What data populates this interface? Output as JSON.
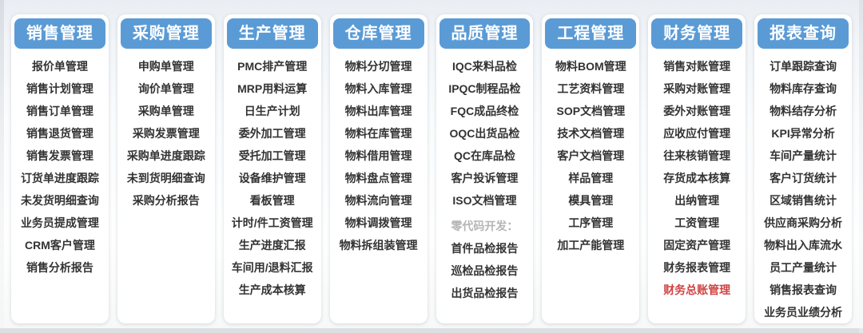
{
  "colors": {
    "header_bg": "#5b9bd5",
    "header_text": "#ffffff",
    "card_bg": "#ffffff",
    "item_text": "#333333",
    "muted_text": "#b5b5b5",
    "highlight_text": "#d04343"
  },
  "columns": [
    {
      "title": "销售管理",
      "items": [
        {
          "label": "报价单管理",
          "style": "normal"
        },
        {
          "label": "销售计划管理",
          "style": "normal"
        },
        {
          "label": "销售订单管理",
          "style": "normal"
        },
        {
          "label": "销售退货管理",
          "style": "normal"
        },
        {
          "label": "销售发票管理",
          "style": "normal"
        },
        {
          "label": "订货单进度跟踪",
          "style": "normal"
        },
        {
          "label": "未发货明细查询",
          "style": "normal"
        },
        {
          "label": "业务员提成管理",
          "style": "normal"
        },
        {
          "label": "CRM客户管理",
          "style": "normal"
        },
        {
          "label": "销售分析报告",
          "style": "normal"
        }
      ]
    },
    {
      "title": "采购管理",
      "items": [
        {
          "label": "申购单管理",
          "style": "normal"
        },
        {
          "label": "询价单管理",
          "style": "normal"
        },
        {
          "label": "采购单管理",
          "style": "normal"
        },
        {
          "label": "采购发票管理",
          "style": "normal"
        },
        {
          "label": "采购单进度跟踪",
          "style": "normal"
        },
        {
          "label": "未到货明细查询",
          "style": "normal"
        },
        {
          "label": "采购分析报告",
          "style": "normal"
        }
      ]
    },
    {
      "title": "生产管理",
      "items": [
        {
          "label": "PMC排产管理",
          "style": "normal"
        },
        {
          "label": "MRP用料运算",
          "style": "normal"
        },
        {
          "label": "日生产计划",
          "style": "normal"
        },
        {
          "label": "委外加工管理",
          "style": "normal"
        },
        {
          "label": "受托加工管理",
          "style": "normal"
        },
        {
          "label": "设备维护管理",
          "style": "normal"
        },
        {
          "label": "看板管理",
          "style": "normal"
        },
        {
          "label": "计时/件工资管理",
          "style": "normal"
        },
        {
          "label": "生产进度汇报",
          "style": "normal"
        },
        {
          "label": "车间用/退料汇报",
          "style": "normal"
        },
        {
          "label": "生产成本核算",
          "style": "normal"
        }
      ]
    },
    {
      "title": "仓库管理",
      "items": [
        {
          "label": "物料分切管理",
          "style": "normal"
        },
        {
          "label": "物料入库管理",
          "style": "normal"
        },
        {
          "label": "物料出库管理",
          "style": "normal"
        },
        {
          "label": "物料在库管理",
          "style": "normal"
        },
        {
          "label": "物料借用管理",
          "style": "normal"
        },
        {
          "label": "物料盘点管理",
          "style": "normal"
        },
        {
          "label": "物料流向管理",
          "style": "normal"
        },
        {
          "label": "物料调拨管理",
          "style": "normal"
        },
        {
          "label": "物料拆组装管理",
          "style": "normal"
        }
      ]
    },
    {
      "title": "品质管理",
      "items": [
        {
          "label": "IQC来料品检",
          "style": "normal"
        },
        {
          "label": "IPQC制程品检",
          "style": "normal"
        },
        {
          "label": "FQC成品终检",
          "style": "normal"
        },
        {
          "label": "OQC出货品检",
          "style": "normal"
        },
        {
          "label": "QC在库品检",
          "style": "normal"
        },
        {
          "label": "客户投诉管理",
          "style": "normal"
        },
        {
          "label": "ISO文档管理",
          "style": "normal"
        },
        {
          "label": "零代码开发：",
          "style": "muted"
        },
        {
          "label": "首件品检报告",
          "style": "normal"
        },
        {
          "label": "巡检品检报告",
          "style": "normal"
        },
        {
          "label": "出货品检报告",
          "style": "normal"
        }
      ]
    },
    {
      "title": "工程管理",
      "items": [
        {
          "label": "物料BOM管理",
          "style": "normal"
        },
        {
          "label": "工艺资料管理",
          "style": "normal"
        },
        {
          "label": "SOP文档管理",
          "style": "normal"
        },
        {
          "label": "技术文档管理",
          "style": "normal"
        },
        {
          "label": "客户文档管理",
          "style": "normal"
        },
        {
          "label": "样品管理",
          "style": "normal"
        },
        {
          "label": "模具管理",
          "style": "normal"
        },
        {
          "label": "工序管理",
          "style": "normal"
        },
        {
          "label": "加工产能管理",
          "style": "normal"
        }
      ]
    },
    {
      "title": "财务管理",
      "items": [
        {
          "label": "销售对账管理",
          "style": "normal"
        },
        {
          "label": "采购对账管理",
          "style": "normal"
        },
        {
          "label": "委外对账管理",
          "style": "normal"
        },
        {
          "label": "应收应付管理",
          "style": "normal"
        },
        {
          "label": "往来核销管理",
          "style": "normal"
        },
        {
          "label": "存货成本核算",
          "style": "normal"
        },
        {
          "label": "出纳管理",
          "style": "normal"
        },
        {
          "label": "工资管理",
          "style": "normal"
        },
        {
          "label": "固定资产管理",
          "style": "normal"
        },
        {
          "label": "财务报表管理",
          "style": "normal"
        },
        {
          "label": "财务总账管理",
          "style": "red"
        }
      ]
    },
    {
      "title": "报表查询",
      "items": [
        {
          "label": "订单跟踪查询",
          "style": "normal"
        },
        {
          "label": "物料库存查询",
          "style": "normal"
        },
        {
          "label": "物料结存分析",
          "style": "normal"
        },
        {
          "label": "KPI异常分析",
          "style": "normal"
        },
        {
          "label": "车间产量统计",
          "style": "normal"
        },
        {
          "label": "客户订货统计",
          "style": "normal"
        },
        {
          "label": "区域销售统计",
          "style": "normal"
        },
        {
          "label": "供应商采购分析",
          "style": "normal"
        },
        {
          "label": "物料出入库流水",
          "style": "normal"
        },
        {
          "label": "员工产量统计",
          "style": "normal"
        },
        {
          "label": "销售报表查询",
          "style": "normal"
        },
        {
          "label": "业务员业绩分析",
          "style": "normal"
        }
      ]
    }
  ]
}
